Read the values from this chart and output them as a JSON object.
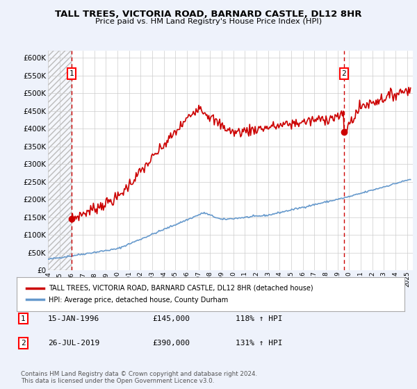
{
  "title": "TALL TREES, VICTORIA ROAD, BARNARD CASTLE, DL12 8HR",
  "subtitle": "Price paid vs. HM Land Registry's House Price Index (HPI)",
  "ylim": [
    0,
    620000
  ],
  "yticks": [
    0,
    50000,
    100000,
    150000,
    200000,
    250000,
    300000,
    350000,
    400000,
    450000,
    500000,
    550000,
    600000
  ],
  "xlim_start": 1994.0,
  "xlim_end": 2025.5,
  "bg_color": "#eef2fb",
  "plot_bg": "#ffffff",
  "hpi_color": "#6699cc",
  "price_color": "#cc0000",
  "marker1_x": 1996.04,
  "marker1_y": 145000,
  "marker2_x": 2019.56,
  "marker2_y": 390000,
  "legend_label_red": "TALL TREES, VICTORIA ROAD, BARNARD CASTLE, DL12 8HR (detached house)",
  "legend_label_blue": "HPI: Average price, detached house, County Durham",
  "annotation1_label": "1",
  "annotation2_label": "2",
  "note1_num": "1",
  "note1_date": "15-JAN-1996",
  "note1_price": "£145,000",
  "note1_hpi": "118% ↑ HPI",
  "note2_num": "2",
  "note2_date": "26-JUL-2019",
  "note2_price": "£390,000",
  "note2_hpi": "131% ↑ HPI",
  "footer": "Contains HM Land Registry data © Crown copyright and database right 2024.\nThis data is licensed under the Open Government Licence v3.0."
}
